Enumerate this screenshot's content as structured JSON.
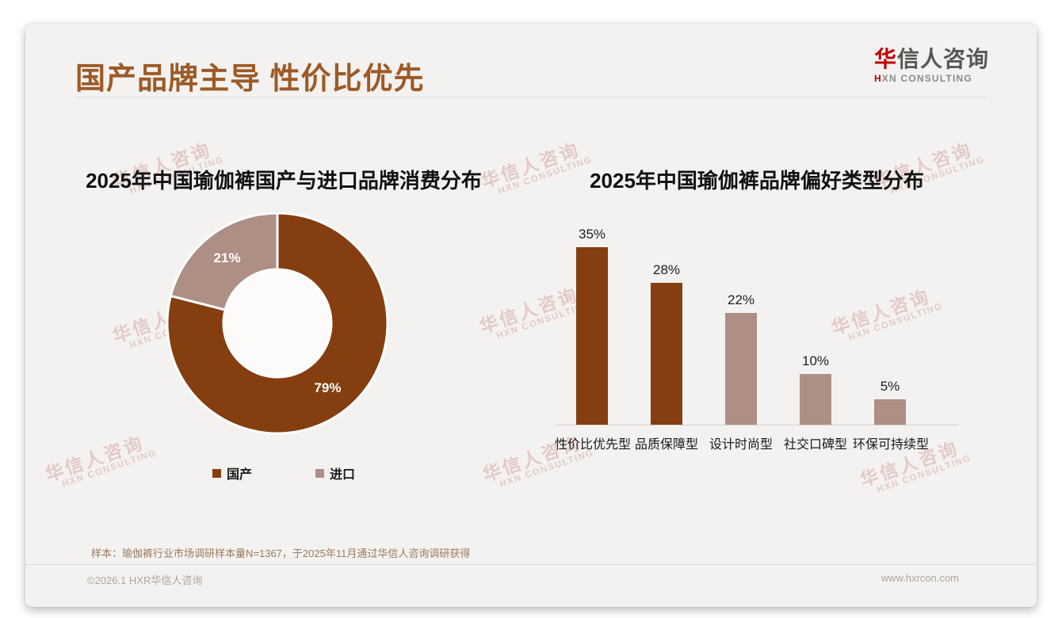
{
  "header": {
    "title": "国产品牌主导 性价比优先",
    "logo": {
      "first_char": "华",
      "rest_chars": "信人咨询",
      "subtitle_first": "H",
      "subtitle_rest": "XN CONSULTING"
    }
  },
  "watermark": {
    "line1": "华信人咨询",
    "line2": "HXN CONSULTING"
  },
  "chart_data": [
    {
      "type": "pie",
      "donut": true,
      "title": "2025年中国瑜伽裤国产与进口品牌消费分布",
      "labels": [
        "国产",
        "进口"
      ],
      "values": [
        79,
        21
      ],
      "data_labels": [
        "79%",
        "21%"
      ],
      "colors": [
        "#853E10",
        "#AD8F86"
      ],
      "start_angle_deg": 0,
      "direction": "clockwise",
      "legend_position": "bottom"
    },
    {
      "type": "bar",
      "title": "2025年中国瑜伽裤品牌偏好类型分布",
      "categories": [
        "性价比优先型",
        "品质保障型",
        "设计时尚型",
        "社交口碑型",
        "环保可持续型"
      ],
      "values": [
        35,
        28,
        22,
        10,
        5
      ],
      "value_labels": [
        "35%",
        "28%",
        "22%",
        "10%",
        "5%"
      ],
      "bar_colors": [
        "#853E10",
        "#853E10",
        "#AD8F86",
        "#AD8F86",
        "#AD8F86"
      ],
      "xlabel": "",
      "ylabel": "",
      "ylim": [
        0,
        35
      ],
      "grid": false,
      "axis_line": true
    }
  ],
  "footnote": {
    "text": "样本：瑜伽裤行业市场调研样本量N=1367，于2025年11月通过华信人咨询调研获得"
  },
  "footer": {
    "copyright": "©2026.1 HXR华信人咨询",
    "website": "www.hxrcon.com"
  },
  "theme": {
    "accent_brown": "#853E10",
    "accent_mauve": "#AD8F86",
    "title_color": "#9D5A26",
    "card_bg": "#F3F2F0",
    "logo_red": "#C00000"
  }
}
